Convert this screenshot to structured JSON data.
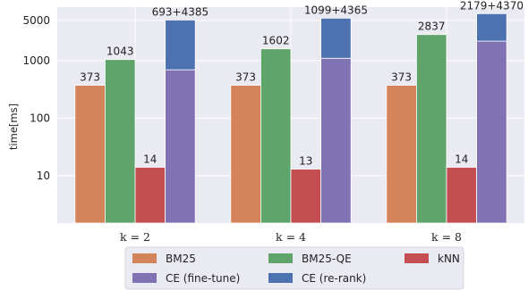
{
  "chart_data": {
    "type": "bar",
    "title": "",
    "ylabel": "time[ms]",
    "xlabel": "",
    "yscale": "log",
    "ylim": [
      1.5,
      8500
    ],
    "yticks": [
      10,
      100,
      1000,
      5000
    ],
    "ytick_labels": [
      "10",
      "100",
      "1000",
      "5000"
    ],
    "grid": true,
    "legend_position": "bottom",
    "categories": [
      "k = 2",
      "k = 4",
      "k = 8"
    ],
    "series": [
      {
        "name": "BM25",
        "color": "#d5835a",
        "values": [
          373,
          373,
          373
        ],
        "labels": [
          "373",
          "373",
          "373"
        ]
      },
      {
        "name": "BM25-QE",
        "color": "#5ea46b",
        "values": [
          1043,
          1602,
          2837
        ],
        "labels": [
          "1043",
          "1602",
          "2837"
        ]
      },
      {
        "name": "kNN",
        "color": "#c44e52",
        "values": [
          14,
          13,
          14
        ],
        "labels": [
          "14",
          "13",
          "14"
        ]
      },
      {
        "name": "CE (fine-tune)",
        "color": "#8172b3",
        "values": [
          693,
          1099,
          2179
        ],
        "labels": [
          "",
          "",
          ""
        ]
      },
      {
        "name": "CE (re-rank)",
        "color": "#4c72b0",
        "values": [
          4385,
          4365,
          4370
        ],
        "labels": [
          "",
          "",
          ""
        ],
        "stacked_on": "CE (fine-tune)"
      }
    ],
    "stack_labels": [
      "693+4385",
      "1099+4365",
      "2179+4370"
    ],
    "legend": [
      [
        "BM25",
        "BM25-QE",
        "kNN"
      ],
      [
        "CE (fine-tune)",
        "CE (re-rank)"
      ]
    ]
  }
}
